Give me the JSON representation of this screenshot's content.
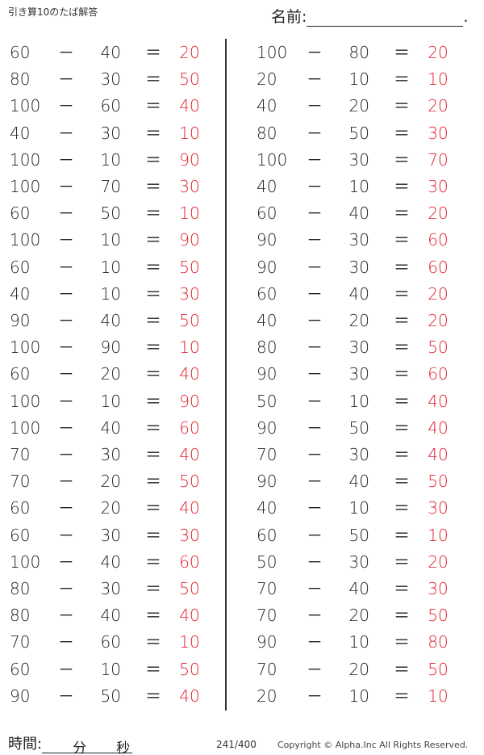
{
  "header": {
    "title": "引き算10のたば解答",
    "name_label": "名前:",
    "name_end": "."
  },
  "operator": "－",
  "equals": "＝",
  "colors": {
    "answer": "#e0202e",
    "text": "#222222"
  },
  "left": [
    [
      "60",
      "40",
      "20"
    ],
    [
      "80",
      "30",
      "50"
    ],
    [
      "100",
      "60",
      "40"
    ],
    [
      "40",
      "30",
      "10"
    ],
    [
      "100",
      "10",
      "90"
    ],
    [
      "100",
      "70",
      "30"
    ],
    [
      "60",
      "50",
      "10"
    ],
    [
      "100",
      "10",
      "90"
    ],
    [
      "60",
      "10",
      "50"
    ],
    [
      "40",
      "10",
      "30"
    ],
    [
      "90",
      "40",
      "50"
    ],
    [
      "100",
      "90",
      "10"
    ],
    [
      "60",
      "20",
      "40"
    ],
    [
      "100",
      "10",
      "90"
    ],
    [
      "100",
      "40",
      "60"
    ],
    [
      "70",
      "30",
      "40"
    ],
    [
      "70",
      "20",
      "50"
    ],
    [
      "60",
      "20",
      "40"
    ],
    [
      "60",
      "30",
      "30"
    ],
    [
      "100",
      "40",
      "60"
    ],
    [
      "80",
      "30",
      "50"
    ],
    [
      "80",
      "40",
      "40"
    ],
    [
      "70",
      "60",
      "10"
    ],
    [
      "60",
      "10",
      "50"
    ],
    [
      "90",
      "50",
      "40"
    ]
  ],
  "right": [
    [
      "100",
      "80",
      "20"
    ],
    [
      "20",
      "10",
      "10"
    ],
    [
      "40",
      "20",
      "20"
    ],
    [
      "80",
      "50",
      "30"
    ],
    [
      "100",
      "30",
      "70"
    ],
    [
      "40",
      "10",
      "30"
    ],
    [
      "60",
      "40",
      "20"
    ],
    [
      "90",
      "30",
      "60"
    ],
    [
      "90",
      "30",
      "60"
    ],
    [
      "60",
      "40",
      "20"
    ],
    [
      "40",
      "20",
      "20"
    ],
    [
      "80",
      "30",
      "50"
    ],
    [
      "90",
      "30",
      "60"
    ],
    [
      "50",
      "10",
      "40"
    ],
    [
      "90",
      "50",
      "40"
    ],
    [
      "70",
      "30",
      "40"
    ],
    [
      "90",
      "40",
      "50"
    ],
    [
      "40",
      "10",
      "30"
    ],
    [
      "60",
      "50",
      "10"
    ],
    [
      "50",
      "30",
      "20"
    ],
    [
      "70",
      "40",
      "30"
    ],
    [
      "70",
      "20",
      "50"
    ],
    [
      "90",
      "10",
      "80"
    ],
    [
      "70",
      "20",
      "50"
    ],
    [
      "20",
      "10",
      "10"
    ]
  ],
  "footer": {
    "time_label": "時間:",
    "minutes": "分",
    "seconds": "秒",
    "page": "241/400",
    "copyright": "Copyright ©  Alpha.Inc All Rights Reserved."
  }
}
